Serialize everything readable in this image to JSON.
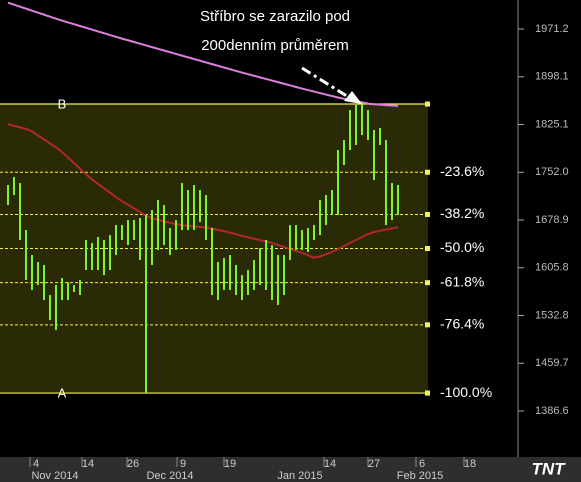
{
  "chart_data": {
    "type": "range-bar",
    "annotation": [
      "Stříbro se zarazilo pod",
      "200denním průměrem"
    ],
    "logo": "TNT",
    "ylim": [
      1319.3,
      2015.6
    ],
    "yticks": [
      {
        "value": 1971.2,
        "label": "1971.2"
      },
      {
        "value": 1898.1,
        "label": "1898.1"
      },
      {
        "value": 1825.1,
        "label": "1825.1"
      },
      {
        "value": 1752.0,
        "label": "1752.0"
      },
      {
        "value": 1678.9,
        "label": "1678.9"
      },
      {
        "value": 1605.8,
        "label": "1605.8"
      },
      {
        "value": 1532.8,
        "label": "1532.8"
      },
      {
        "value": 1459.7,
        "label": "1459.7"
      },
      {
        "value": 1386.6,
        "label": "1386.6"
      }
    ],
    "xtick_labels": [
      "4",
      "14",
      "26",
      "9",
      "19",
      "14",
      "27",
      "6",
      "18"
    ],
    "month_labels": [
      "Nov 2014",
      "Dec 2014",
      "Jan 2015",
      "Feb 2015"
    ],
    "bar_color": "#7cf52a",
    "high": [
      1732.5,
      1744.7,
      1735.5,
      1663.6,
      1625.3,
      1614.6,
      1610.0,
      1564.1,
      1579.4,
      1590.1,
      1584.0,
      1579.4,
      1587.1,
      1648.3,
      1643.7,
      1652.9,
      1648.3,
      1655.9,
      1671.2,
      1671.2,
      1678.9,
      1678.9,
      1682.0,
      1686.5,
      1694.2,
      1709.5,
      1701.8,
      1666.6,
      1678.9,
      1735.5,
      1724.8,
      1732.5,
      1724.8,
      1717.2,
      1666.6,
      1614.6,
      1620.7,
      1625.3,
      1610.0,
      1594.7,
      1602.4,
      1617.7,
      1636.0,
      1648.3,
      1640.6,
      1625.3,
      1625.3,
      1671.2,
      1671.2,
      1663.6,
      1666.6,
      1671.2,
      1709.5,
      1717.2,
      1724.8,
      1786.0,
      1801.3,
      1847.2,
      1854.9,
      1858.0,
      1847.2,
      1816.6,
      1819.7,
      1801.3,
      1735.5,
      1732.5
    ],
    "low": [
      1701.8,
      1717.2,
      1648.3,
      1587.1,
      1571.8,
      1579.4,
      1556.4,
      1525.8,
      1510.5,
      1556.4,
      1556.4,
      1568.7,
      1564.1,
      1602.4,
      1602.4,
      1602.4,
      1594.7,
      1602.4,
      1625.3,
      1648.3,
      1640.6,
      1648.3,
      1617.7,
      1414.1,
      1610.0,
      1633.0,
      1640.6,
      1625.3,
      1633.0,
      1663.6,
      1663.6,
      1663.6,
      1675.8,
      1648.3,
      1564.1,
      1556.4,
      1571.8,
      1571.8,
      1564.1,
      1556.4,
      1564.1,
      1571.8,
      1579.4,
      1571.8,
      1556.4,
      1548.8,
      1564.1,
      1617.7,
      1633.0,
      1633.0,
      1629.9,
      1648.3,
      1655.9,
      1671.2,
      1686.5,
      1686.5,
      1763.1,
      1786.0,
      1793.7,
      1809.0,
      1801.3,
      1740.1,
      1793.7,
      1671.2,
      1678.9,
      1686.5
    ],
    "lines": [
      {
        "color": "#e07ee0",
        "values": [
          2011.5,
          2008.5,
          2005.4,
          2002.4,
          1999.3,
          1996.2,
          1993.2,
          1990.1,
          1987.0,
          1984.1,
          1981.3,
          1978.6,
          1975.8,
          1973.0,
          1970.3,
          1967.5,
          1964.8,
          1962.0,
          1959.2,
          1956.5,
          1954.0,
          1951.3,
          1948.7,
          1946.1,
          1943.5,
          1940.9,
          1938.3,
          1935.7,
          1933.1,
          1930.5,
          1927.9,
          1925.3,
          1922.7,
          1920.1,
          1917.5,
          1914.9,
          1912.3,
          1909.7,
          1907.1,
          1904.6,
          1902.1,
          1899.7,
          1897.2,
          1894.8,
          1892.3,
          1889.9,
          1887.4,
          1885.0,
          1882.5,
          1880.1,
          1877.8,
          1875.5,
          1873.2,
          1870.9,
          1868.7,
          1866.4,
          1864.4,
          1862.5,
          1860.7,
          1858.9,
          1857.0,
          1856.1,
          1855.4,
          1854.8,
          1854.2,
          1853.6
        ]
      },
      {
        "color": "#b3262a",
        "values": [
          1825.6,
          1823.2,
          1820.7,
          1818.2,
          1814.6,
          1808.4,
          1802.3,
          1796.2,
          1790.1,
          1783.1,
          1774.6,
          1766.0,
          1757.5,
          1748.9,
          1741.0,
          1734.2,
          1727.5,
          1720.7,
          1714.0,
          1707.7,
          1702.2,
          1696.7,
          1691.2,
          1685.7,
          1681.3,
          1679.1,
          1677.0,
          1674.8,
          1672.6,
          1670.9,
          1670.0,
          1669.1,
          1668.2,
          1667.2,
          1665.9,
          1663.8,
          1661.7,
          1659.5,
          1657.4,
          1654.6,
          1652.4,
          1650.3,
          1648.1,
          1646.0,
          1643.8,
          1640.8,
          1637.7,
          1634.6,
          1631.6,
          1628.7,
          1625.0,
          1621.3,
          1623.3,
          1626.4,
          1630.0,
          1634.5,
          1639.1,
          1643.7,
          1648.3,
          1652.9,
          1657.5,
          1660.5,
          1662.4,
          1664.2,
          1666.0,
          1667.8
        ]
      }
    ],
    "fib_high": {
      "value": 1856.4,
      "label": "B"
    },
    "fib_low": {
      "value": 1414.1,
      "label": "A"
    },
    "fib_levels": [
      {
        "value": 1752.0,
        "label": "-23.6%"
      },
      {
        "value": 1687.4,
        "label": "-38.2%"
      },
      {
        "value": 1635.3,
        "label": "-50.0%"
      },
      {
        "value": 1583.0,
        "label": "-61.8%"
      },
      {
        "value": 1518.5,
        "label": "-76.4%"
      },
      {
        "value": 1414.1,
        "label": "-100.0%"
      }
    ],
    "fib_color": "#f2f25a",
    "zone_color": "#2a2a06"
  }
}
